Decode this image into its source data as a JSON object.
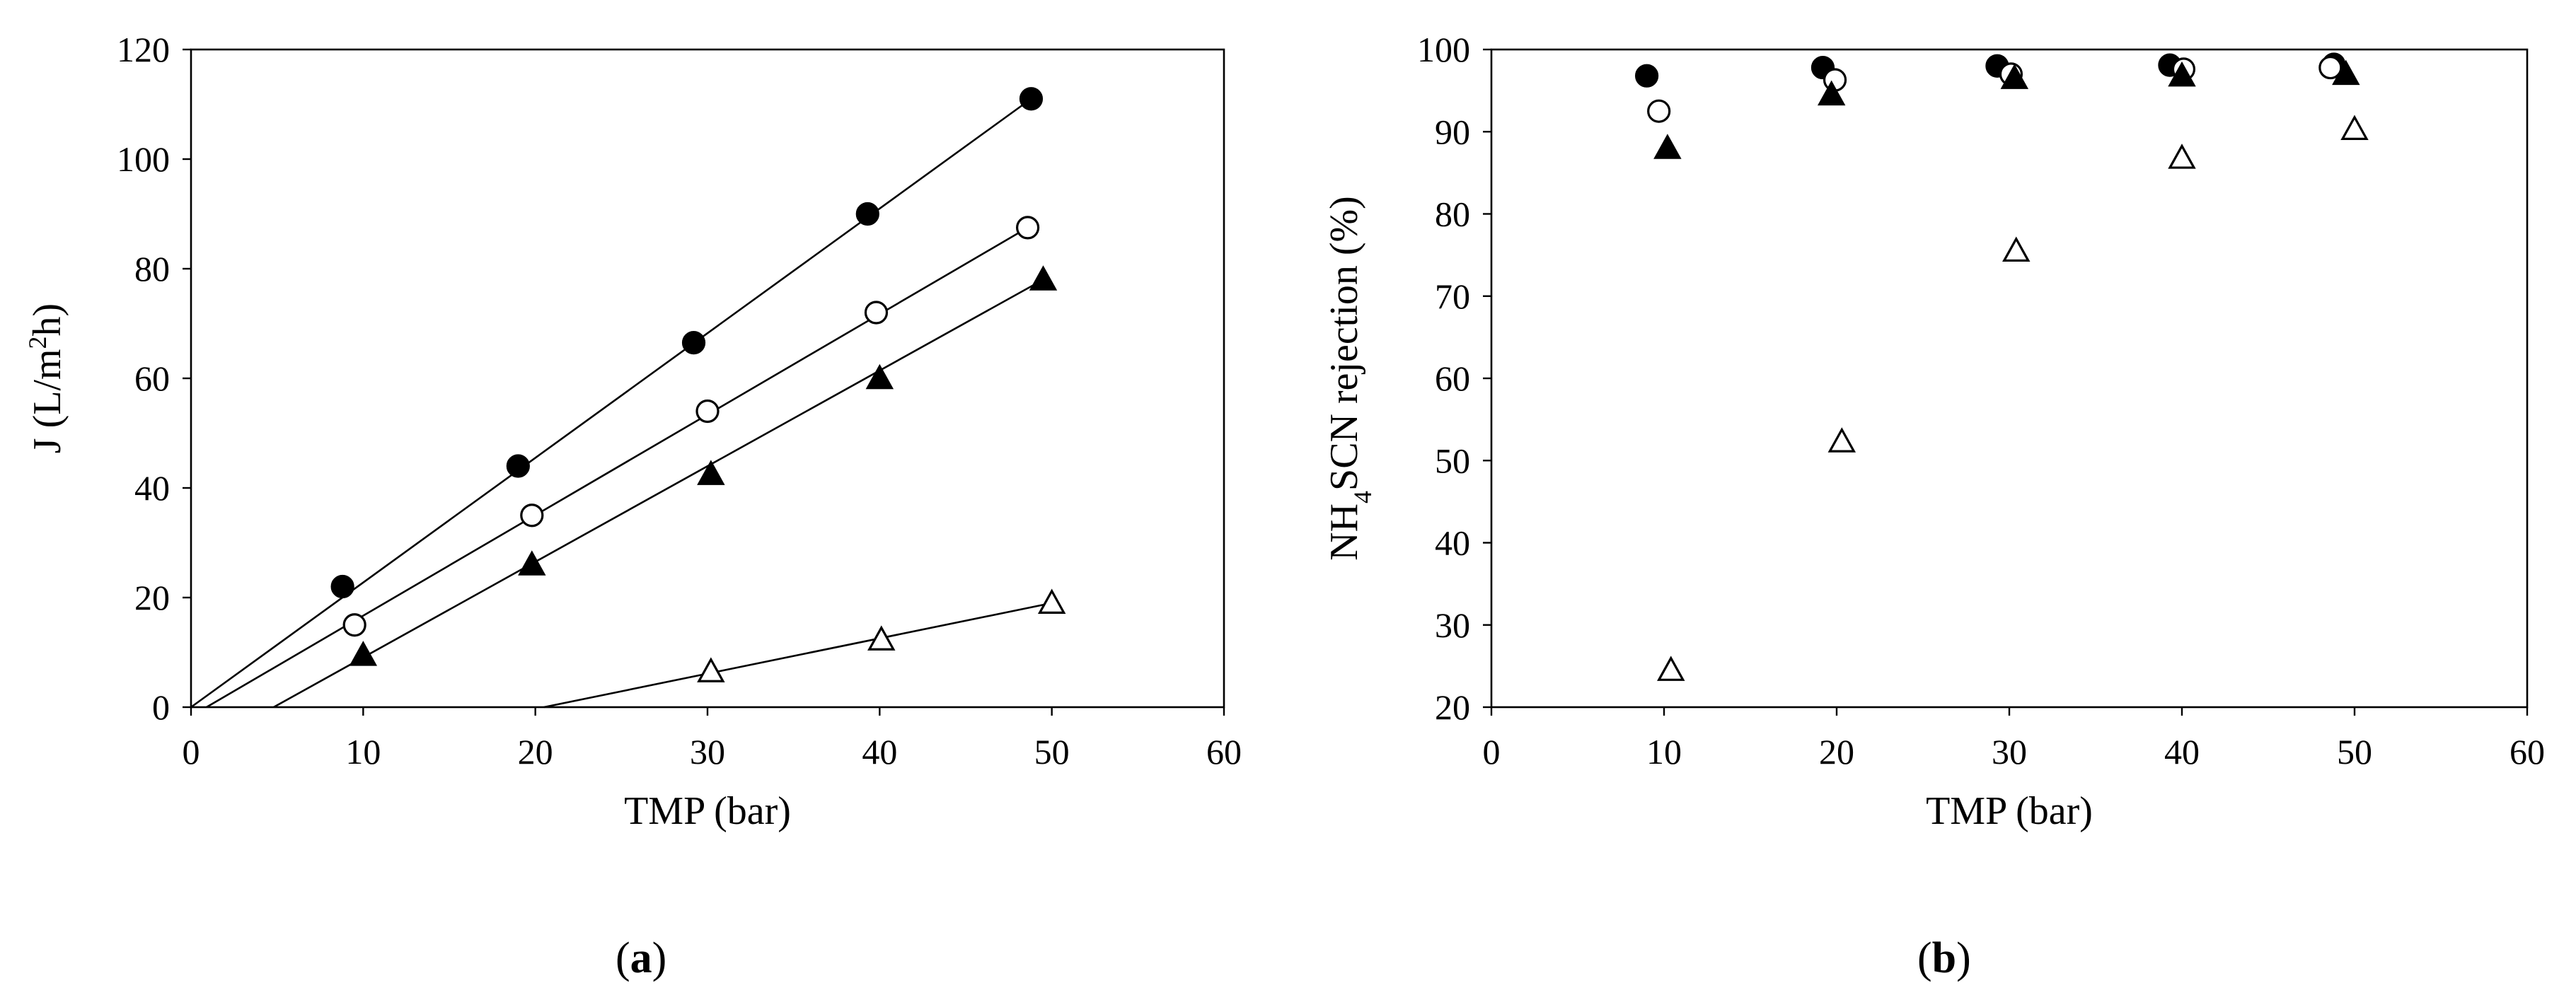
{
  "chart_data": [
    {
      "type": "scatter",
      "panel_label": "a",
      "xlabel": "TMP (bar)",
      "ylabel": {
        "pre": "J (L/m",
        "sup": "2",
        "post": "h)"
      },
      "xlim": [
        0,
        60
      ],
      "ylim": [
        0,
        120
      ],
      "xticks": [
        0,
        10,
        20,
        30,
        40,
        50,
        60
      ],
      "yticks": [
        0,
        20,
        40,
        60,
        80,
        100,
        120
      ],
      "grid": false,
      "legend": "none",
      "series": [
        {
          "marker": "filled-circle",
          "x": [
            8.8,
            19.0,
            29.2,
            39.3,
            48.8
          ],
          "y": [
            22,
            44,
            66.5,
            90,
            111
          ],
          "fit": {
            "x": [
              0,
              48.8
            ],
            "y": [
              0,
              111
            ]
          }
        },
        {
          "marker": "open-circle",
          "x": [
            9.5,
            19.8,
            30.0,
            39.8,
            48.6
          ],
          "y": [
            15,
            35,
            54,
            72,
            87.5
          ],
          "fit": {
            "x": [
              0.9,
              48.6
            ],
            "y": [
              0,
              87.5
            ]
          }
        },
        {
          "marker": "filled-triangle",
          "x": [
            10.0,
            19.8,
            30.2,
            40.0,
            49.5
          ],
          "y": [
            9.5,
            26,
            42.5,
            60,
            78
          ],
          "fit": {
            "x": [
              4.8,
              49.5
            ],
            "y": [
              0,
              78
            ]
          }
        },
        {
          "marker": "open-triangle",
          "x": [
            30.2,
            40.1,
            50.0
          ],
          "y": [
            6.5,
            12.3,
            19
          ],
          "fit": {
            "x": [
              20.5,
              50.0
            ],
            "y": [
              0,
              19
            ]
          }
        }
      ]
    },
    {
      "type": "scatter",
      "panel_label": "b",
      "xlabel": "TMP (bar)",
      "ylabel": {
        "pre": "NH",
        "sub": "4",
        "post": "SCN rejection (%)"
      },
      "xlim": [
        0,
        60
      ],
      "ylim": [
        20,
        100
      ],
      "xticks": [
        0,
        10,
        20,
        30,
        40,
        50,
        60
      ],
      "yticks": [
        20,
        30,
        40,
        50,
        60,
        70,
        80,
        90,
        100
      ],
      "grid": false,
      "legend": "none",
      "series": [
        {
          "marker": "filled-circle",
          "x": [
            9.0,
            19.2,
            29.3,
            39.3,
            48.8
          ],
          "y": [
            96.8,
            97.8,
            98.0,
            98.1,
            98.2
          ]
        },
        {
          "marker": "open-circle",
          "x": [
            9.7,
            19.9,
            30.1,
            40.1,
            48.6
          ],
          "y": [
            92.5,
            96.3,
            97.0,
            97.6,
            97.8
          ]
        },
        {
          "marker": "filled-triangle",
          "x": [
            10.2,
            19.7,
            30.3,
            40.0,
            49.5
          ],
          "y": [
            88.0,
            94.5,
            96.5,
            96.8,
            97.0
          ]
        },
        {
          "marker": "open-triangle",
          "x": [
            10.4,
            20.3,
            30.4,
            40.0,
            50.0
          ],
          "y": [
            24.5,
            52.3,
            75.5,
            86.8,
            90.3
          ]
        }
      ]
    }
  ]
}
